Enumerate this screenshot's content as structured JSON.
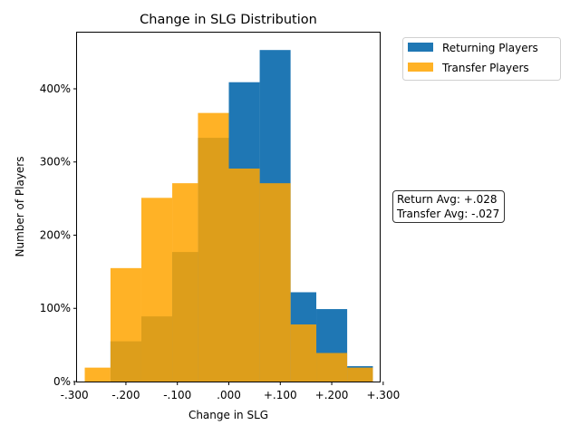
{
  "chart_data": {
    "type": "bar",
    "title": "Change in SLG Distribution",
    "xlabel": "Change in SLG",
    "ylabel": "Number of Players",
    "bin_edges": [
      -0.28,
      -0.23,
      -0.17,
      -0.11,
      -0.06,
      0.0,
      0.06,
      0.12,
      0.17,
      0.23,
      0.28
    ],
    "xlim": [
      -0.295,
      0.295
    ],
    "ylim": [
      0,
      4.78
    ],
    "x_ticks": [
      -0.3,
      -0.2,
      -0.1,
      0.0,
      0.1,
      0.2,
      0.3
    ],
    "x_tick_labels": [
      "-.300",
      "-.200",
      "-.100",
      ".000",
      "+.100",
      "+.200",
      "+.300"
    ],
    "y_ticks": [
      0,
      1,
      2,
      3,
      4
    ],
    "y_tick_labels": [
      "0%",
      "100%",
      "200%",
      "300%",
      "400%"
    ],
    "series": [
      {
        "name": "Returning Players",
        "color": "#1f77b4",
        "alpha": 1.0,
        "values": [
          0.0,
          0.55,
          0.89,
          1.77,
          3.33,
          4.09,
          4.53,
          1.22,
          0.99,
          0.21
        ]
      },
      {
        "name": "Transfer Players",
        "color": "#ffa500",
        "alpha": 0.85,
        "values": [
          0.19,
          1.55,
          2.51,
          2.71,
          3.67,
          2.91,
          2.71,
          0.78,
          0.39,
          0.19
        ]
      }
    ],
    "legend_position": "outside-top-right",
    "grid": false,
    "annotation": {
      "line1": "Return Avg: +.028",
      "line2": "Transfer Avg: -.027"
    }
  }
}
